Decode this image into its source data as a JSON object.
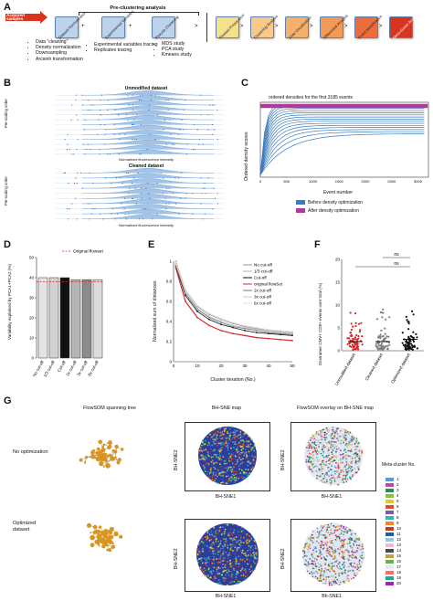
{
  "panelA": {
    "label": "A",
    "acquired": "Acquired samples",
    "section_title": "Pre-clustering analysis",
    "steps": [
      "Dataset Normalization",
      "Experimental Variables",
      "Pseudo Clustering",
      "Flowset Preparation",
      "Clustering Analysis",
      "Data Visualization",
      "Differential Analysis",
      "Event Identification",
      "Meta-cluster Analysis"
    ],
    "bullets1": [
      "Data \"cleaning\"",
      "Density normalization",
      "Downsampling",
      "Arcsinh transformation"
    ],
    "bullets2": [
      "Experimental variables tracing",
      "Replicates tracing"
    ],
    "bullets3": [
      "MDS study",
      "PCA study",
      "Kmeans study"
    ]
  },
  "panelB": {
    "label": "B",
    "title1": "Unmodified dataset",
    "title2": "Cleaned dataset",
    "ylabel1": "Pre-scaling order",
    "ylabel2": "Pre-scaling order",
    "xlabel": "Normalized fluorescence intensity"
  },
  "panelC": {
    "label": "C",
    "title": "ordered densities for the first 3185 events",
    "ylabel": "Ordered density scores",
    "xlabel": "Event number",
    "legend": [
      "Before density optimization",
      "After density optimization"
    ],
    "colors": [
      "#3a7cc0",
      "#b03a9a"
    ]
  },
  "panelD": {
    "label": "D",
    "legend": "Original flowset",
    "ylabel": "Variability explained by PCA1+PCA2 (%)"
  },
  "panelE": {
    "label": "E",
    "ylabel": "Normalized sum of distances",
    "xlabel": "Cluster iteration (No.)",
    "legend": [
      "No cut-off",
      "1/3 cut-off",
      "Cut-off",
      "original flowSet",
      "2x cut-off",
      "3x cut-off",
      "6x cut-off"
    ]
  },
  "panelF": {
    "label": "F",
    "ylabel": "Dextramer CMV+ CD8+ events over total (%)",
    "ns1": "ns",
    "ns2": "ns"
  },
  "panelG": {
    "label": "G",
    "col1": "FlowSOM spanning tree",
    "col2": "BH-SNE map",
    "col3": "FlowSOM overlay on BH-SNE map",
    "row1": "No optimization",
    "row2": "Optimized dataset",
    "xaxis": "BH-SNE1",
    "xaxis2": "Bh-SNE1",
    "yaxis": "BH-SNE2",
    "legend_title": "Meta-cluster No.",
    "clusters": [
      "1",
      "2",
      "3",
      "4",
      "5",
      "6",
      "7",
      "8",
      "9",
      "10",
      "11",
      "12",
      "13",
      "14",
      "15",
      "16",
      "17",
      "18",
      "19",
      "20"
    ],
    "cluster_colors": [
      "#5a9bd4",
      "#b84a9a",
      "#2e8b57",
      "#8fbf3f",
      "#e8c23a",
      "#d94c3a",
      "#7d5ba6",
      "#3fb0b0",
      "#f08a24",
      "#c0392b",
      "#1f5fa0",
      "#95c8e8",
      "#f3b6d0",
      "#4b4b4b",
      "#b5a642",
      "#6ab04c",
      "#e6e6fa",
      "#ff6f61",
      "#26a69a",
      "#9c27b0"
    ]
  },
  "chart_data": [
    {
      "type": "line",
      "title": "ordered densities for the first 3185 events",
      "xlabel": "Event number",
      "ylabel": "Ordered density scores",
      "x": [
        0,
        500,
        1000,
        1500,
        2000,
        2500,
        3000
      ],
      "series": [
        {
          "name": "Before density optimization",
          "values": [
            0.05,
            0.55,
            0.72,
            0.8,
            0.84,
            0.87,
            0.9
          ]
        },
        {
          "name": "After density optimization",
          "values": [
            0.96,
            0.96,
            0.96,
            0.96,
            0.96,
            0.96,
            0.96
          ]
        }
      ],
      "xlim": [
        0,
        3200
      ],
      "ylim": [
        0,
        1
      ]
    },
    {
      "type": "bar",
      "categories": [
        "No cut-off",
        "1/3 cut-off",
        "Cut-off",
        "2x cut-off",
        "3x cut-off",
        "6x cut-off"
      ],
      "values": [
        40,
        40,
        40,
        39,
        39,
        39
      ],
      "colors": [
        "#e3e3e3",
        "#d2d2d2",
        "#111111",
        "#b5b5b5",
        "#8c8c8c",
        "#dcdcdc"
      ],
      "reference_line": 38,
      "reference_label": "Original flowset",
      "ylabel": "Variability explained by PCA1+PCA2 (%)",
      "ylim": [
        0,
        50
      ],
      "yticks": [
        0,
        10,
        20,
        30,
        40,
        50
      ]
    },
    {
      "type": "line",
      "xlabel": "Cluster iteration (No.)",
      "ylabel": "Normalized sum of distances",
      "x": [
        1,
        5,
        10,
        15,
        20,
        25,
        30,
        35,
        40,
        45,
        50
      ],
      "series": [
        {
          "name": "No cut-off",
          "values": [
            1.0,
            0.72,
            0.55,
            0.47,
            0.42,
            0.38,
            0.35,
            0.33,
            0.31,
            0.3,
            0.29
          ]
        },
        {
          "name": "1/3 cut-off",
          "values": [
            0.98,
            0.7,
            0.53,
            0.45,
            0.4,
            0.36,
            0.34,
            0.32,
            0.3,
            0.29,
            0.28
          ]
        },
        {
          "name": "Cut-off",
          "values": [
            0.95,
            0.66,
            0.5,
            0.42,
            0.37,
            0.34,
            0.31,
            0.29,
            0.28,
            0.27,
            0.26
          ]
        },
        {
          "name": "original flowSet",
          "values": [
            0.93,
            0.6,
            0.44,
            0.36,
            0.31,
            0.28,
            0.26,
            0.24,
            0.23,
            0.22,
            0.21
          ]
        },
        {
          "name": "2x cut-off",
          "values": [
            0.96,
            0.68,
            0.52,
            0.44,
            0.39,
            0.35,
            0.33,
            0.31,
            0.29,
            0.28,
            0.27
          ]
        },
        {
          "name": "3x cut-off",
          "values": [
            0.97,
            0.69,
            0.53,
            0.45,
            0.4,
            0.36,
            0.34,
            0.32,
            0.3,
            0.29,
            0.28
          ]
        },
        {
          "name": "6x cut-off",
          "values": [
            0.99,
            0.72,
            0.56,
            0.48,
            0.43,
            0.39,
            0.36,
            0.34,
            0.32,
            0.31,
            0.3
          ]
        }
      ],
      "xlim": [
        0,
        50
      ],
      "ylim": [
        0,
        1.0
      ],
      "xticks": [
        0,
        10,
        20,
        30,
        40,
        50
      ],
      "yticks": [
        0,
        0.2,
        0.4,
        0.6,
        0.8,
        1.0
      ]
    },
    {
      "type": "scatter",
      "categories": [
        "Unmodified dataset",
        "Cleaned dataset",
        "Optimized dataset"
      ],
      "medians": [
        2.0,
        2.0,
        2.5
      ],
      "colors": [
        "#d62828",
        "#808080",
        "#111111"
      ],
      "ylabel": "Dextramer CMV+ CD8+ events over total (%)",
      "ylim": [
        0,
        20
      ],
      "yticks": [
        0,
        5,
        10,
        15,
        20
      ],
      "annotations": [
        "ns",
        "ns"
      ]
    }
  ]
}
